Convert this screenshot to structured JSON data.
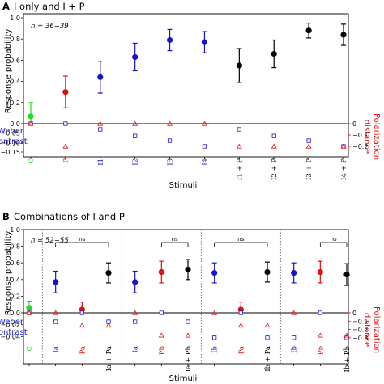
{
  "colors": {
    "green": "#22dd22",
    "red": "#e01010",
    "blue": "#1515c8",
    "black": "#000000",
    "weber_axis": "#1515c8",
    "polarization_axis": "#e01010"
  },
  "chart_data": [
    {
      "panel_letter": "A",
      "title": "I only and I + P",
      "type": "scatter",
      "annotation": "n = 36−39",
      "xlabel": "Stimuli",
      "ylabel": "Response probability",
      "ylim": [
        0,
        1.0
      ],
      "yticks": [
        "0.0",
        "0.2",
        "0.4",
        "0.6",
        "0.8",
        "1.0"
      ],
      "lower_left_label": [
        "Weber",
        "contrast"
      ],
      "lower_left_ylim": [
        -0.15,
        0
      ],
      "lower_left_ticks": [
        "0",
        "−0.05",
        "−0.10",
        "−0.15"
      ],
      "lower_right_label": [
        "Polarization",
        "distance"
      ],
      "lower_right_ylim": [
        -0.25,
        0
      ],
      "lower_right_ticks": [
        "0",
        "−0.1",
        "−0.2"
      ],
      "categories": [
        "C",
        "P",
        "I1",
        "I2",
        "I3",
        "I4",
        "I1 + P",
        "I2 + P",
        "I3 + P",
        "I4 + P"
      ],
      "category_colors": [
        "green",
        "red",
        "blue",
        "blue",
        "blue",
        "blue",
        "black",
        "black",
        "black",
        "black"
      ],
      "response": [
        0.07,
        0.3,
        0.44,
        0.63,
        0.79,
        0.77,
        0.55,
        0.66,
        0.88,
        0.84
      ],
      "response_err": [
        0.13,
        0.15,
        0.15,
        0.13,
        0.1,
        0.1,
        0.16,
        0.13,
        0.07,
        0.1
      ],
      "weber_contrast": [
        0,
        0,
        -0.03,
        -0.065,
        -0.09,
        -0.12,
        -0.03,
        -0.065,
        -0.09,
        -0.12
      ],
      "polarization_distance": [
        0,
        -0.2,
        0,
        0,
        0,
        0,
        -0.2,
        -0.2,
        -0.2,
        -0.2
      ],
      "ns_brackets": [],
      "group_separators": []
    },
    {
      "panel_letter": "B",
      "title": "Combinations of I and P",
      "type": "scatter",
      "annotation": "n = 52−55",
      "xlabel": "Stimuli",
      "ylabel": "Response probability",
      "ylim": [
        0,
        1.0
      ],
      "yticks": [
        "0.0",
        "0.2",
        "0.4",
        "0.6",
        "0.8",
        "1.0"
      ],
      "lower_left_label": [
        "Weber",
        "contrast"
      ],
      "lower_left_ylim": [
        -0.045,
        0
      ],
      "lower_left_ticks": [
        "0.00",
        "−0.02",
        "−0.04"
      ],
      "lower_right_label": [
        "Polarization",
        "distance"
      ],
      "lower_right_ylim": [
        -0.32,
        0
      ],
      "lower_right_ticks": [
        "0",
        "−0.1",
        "−0.2",
        "−0.3"
      ],
      "categories": [
        "C",
        "Ia",
        "Pa",
        "Ia + Pa",
        "Ia",
        "Pb",
        "Ia + Pb",
        "Ib",
        "Pa",
        "Ib + Pa",
        "Ib",
        "Pb",
        "Ib + Pb"
      ],
      "category_colors": [
        "green",
        "blue",
        "red",
        "black",
        "blue",
        "red",
        "black",
        "blue",
        "red",
        "black",
        "blue",
        "red",
        "black"
      ],
      "response": [
        0.06,
        0.37,
        0.04,
        0.48,
        0.37,
        0.49,
        0.52,
        0.48,
        0.04,
        0.49,
        0.48,
        0.49,
        0.46
      ],
      "response_err": [
        0.08,
        0.13,
        0.09,
        0.12,
        0.13,
        0.13,
        0.12,
        0.12,
        0.09,
        0.12,
        0.12,
        0.13,
        0.13
      ],
      "weber_contrast": [
        0,
        -0.015,
        0,
        -0.015,
        -0.015,
        0,
        -0.015,
        -0.042,
        0,
        -0.042,
        -0.042,
        0,
        -0.042
      ],
      "polarization_distance": [
        0,
        0,
        -0.15,
        -0.15,
        0,
        -0.27,
        -0.27,
        0,
        -0.15,
        -0.15,
        0,
        -0.27,
        -0.27
      ],
      "ns_brackets": [
        {
          "from": 1,
          "to": 3,
          "label": "ns"
        },
        {
          "from": 5,
          "to": 6,
          "label": "ns"
        },
        {
          "from": 7,
          "to": 9,
          "label": "ns"
        },
        {
          "from": 11,
          "to": 12,
          "label": "ns"
        }
      ],
      "group_separators": [
        0.5,
        3.5,
        6.5,
        9.5
      ]
    }
  ]
}
